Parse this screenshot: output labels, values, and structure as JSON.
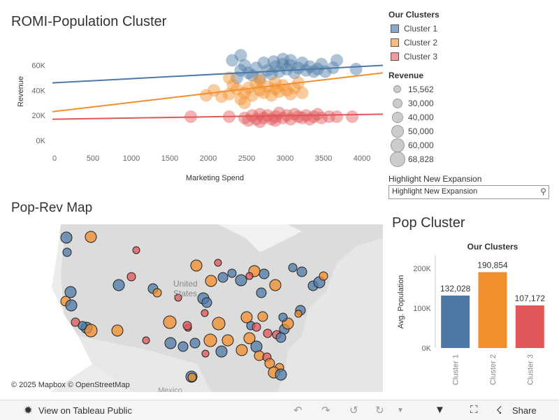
{
  "titles": {
    "scatter": "ROMI-Population Cluster",
    "map": "Pop-Rev Map",
    "bar": "Pop Cluster"
  },
  "legend": {
    "clusters_title": "Our Clusters",
    "clusters": [
      {
        "label": "Cluster 1",
        "color": "#4e79a7"
      },
      {
        "label": "Cluster 2",
        "color": "#f28e2b"
      },
      {
        "label": "Cluster 3",
        "color": "#e15759"
      }
    ],
    "revenue_title": "Revenue",
    "revenue_sizes": [
      "15,562",
      "30,000",
      "40,000",
      "50,000",
      "60,000",
      "68,828"
    ],
    "highlight_title": "Highlight New Expansion",
    "highlight_placeholder": "Highlight New Expansion"
  },
  "map": {
    "label_country": "United States",
    "label_country_line1": "United",
    "label_country_line2": "States",
    "label_mexico": "Mexico",
    "credit": "© 2025 Mapbox  © OpenStreetMap"
  },
  "toolbar": {
    "view_label": "View on Tableau Public",
    "share_label": "Share"
  },
  "chart_data": [
    {
      "type": "scatter",
      "title": "ROMI-Population Cluster",
      "xlabel": "Marketing Spend",
      "ylabel": "Revenue",
      "xlim": [
        0,
        4300
      ],
      "ylim": [
        -5000,
        72000
      ],
      "xticks": [
        0,
        500,
        1000,
        1500,
        2000,
        2500,
        3000,
        3500,
        4000
      ],
      "xtick_labels": [
        "0",
        "500",
        "1000",
        "1500",
        "2000",
        "2500",
        "3000",
        "3500",
        "4000"
      ],
      "yticks": [
        0,
        20000,
        40000,
        60000
      ],
      "ytick_labels": [
        "0K",
        "20K",
        "40K",
        "60K"
      ],
      "series": [
        {
          "name": "Cluster 1",
          "color": "#4e79a7",
          "trend": [
            [
              0,
              46000
            ],
            [
              4300,
              60000
            ]
          ],
          "points": [
            [
              2400,
              50000
            ],
            [
              2450,
              56000
            ],
            [
              2500,
              60000
            ],
            [
              2550,
              54000
            ],
            [
              2600,
              52000
            ],
            [
              2650,
              58000
            ],
            [
              2700,
              50000
            ],
            [
              2750,
              62000
            ],
            [
              2800,
              56000
            ],
            [
              2850,
              53000
            ],
            [
              2900,
              59000
            ],
            [
              2950,
              55000
            ],
            [
              3000,
              61000
            ],
            [
              3050,
              57000
            ],
            [
              3100,
              60000
            ],
            [
              3150,
              54000
            ],
            [
              3200,
              58000
            ],
            [
              3250,
              62000
            ],
            [
              3300,
              56000
            ],
            [
              3350,
              59000
            ],
            [
              3400,
              55000
            ],
            [
              3450,
              57000
            ],
            [
              3500,
              61000
            ],
            [
              3550,
              55000
            ],
            [
              3650,
              58000
            ],
            [
              3700,
              64000
            ],
            [
              3950,
              57000
            ],
            [
              2340,
              64000
            ],
            [
              2450,
              68000
            ],
            [
              2880,
              63000
            ],
            [
              3000,
              65000
            ],
            [
              3100,
              64000
            ]
          ]
        },
        {
          "name": "Cluster 2",
          "color": "#f28e2b",
          "trend": [
            [
              0,
              23000
            ],
            [
              4300,
              54000
            ]
          ],
          "points": [
            [
              2000,
              36000
            ],
            [
              2100,
              40000
            ],
            [
              2200,
              35000
            ],
            [
              2300,
              37000
            ],
            [
              2350,
              44000
            ],
            [
              2400,
              41000
            ],
            [
              2450,
              33000
            ],
            [
              2500,
              38000
            ],
            [
              2550,
              42000
            ],
            [
              2600,
              36000
            ],
            [
              2650,
              45000
            ],
            [
              2700,
              40000
            ],
            [
              2750,
              38000
            ],
            [
              2800,
              43000
            ],
            [
              2850,
              36000
            ],
            [
              2900,
              41000
            ],
            [
              2950,
              39000
            ],
            [
              3000,
              44000
            ],
            [
              3050,
              40000
            ],
            [
              3100,
              37000
            ],
            [
              3150,
              42000
            ],
            [
              3200,
              46000
            ],
            [
              3250,
              38000
            ],
            [
              2500,
              30000
            ],
            [
              2700,
              48000
            ],
            [
              2900,
              46000
            ],
            [
              2300,
              50000
            ]
          ]
        },
        {
          "name": "Cluster 3",
          "color": "#e15759",
          "trend": [
            [
              0,
              17000
            ],
            [
              4300,
              21000
            ]
          ],
          "points": [
            [
              1800,
              19000
            ],
            [
              2300,
              19000
            ],
            [
              2500,
              18000
            ],
            [
              2550,
              16000
            ],
            [
              2600,
              20000
            ],
            [
              2650,
              17000
            ],
            [
              2700,
              21000
            ],
            [
              2750,
              18000
            ],
            [
              2800,
              20000
            ],
            [
              2850,
              17000
            ],
            [
              2900,
              19000
            ],
            [
              2950,
              22000
            ],
            [
              3000,
              18000
            ],
            [
              3050,
              20000
            ],
            [
              3100,
              17000
            ],
            [
              3150,
              21000
            ],
            [
              3200,
              19000
            ],
            [
              3250,
              18000
            ],
            [
              3300,
              20000
            ],
            [
              3350,
              17000
            ],
            [
              3400,
              19000
            ],
            [
              3450,
              21000
            ],
            [
              3500,
              18000
            ],
            [
              3600,
              19000
            ],
            [
              3700,
              19000
            ],
            [
              3900,
              19000
            ],
            [
              2700,
              15000
            ],
            [
              2900,
              16000
            ]
          ]
        }
      ]
    },
    {
      "type": "bar",
      "title": "Our Clusters",
      "categories": [
        "Cluster 1",
        "Cluster 2",
        "Cluster 3"
      ],
      "values": [
        132028,
        190854,
        107172
      ],
      "value_labels": [
        "132,028",
        "190,854",
        "107,172"
      ],
      "colors": [
        "#4e79a7",
        "#f28e2b",
        "#e15759"
      ],
      "ylabel": "Avg. Population",
      "ylim": [
        0,
        225000
      ],
      "yticks": [
        0,
        100000,
        200000
      ],
      "ytick_labels": [
        "0K",
        "100K",
        "200K"
      ]
    }
  ]
}
